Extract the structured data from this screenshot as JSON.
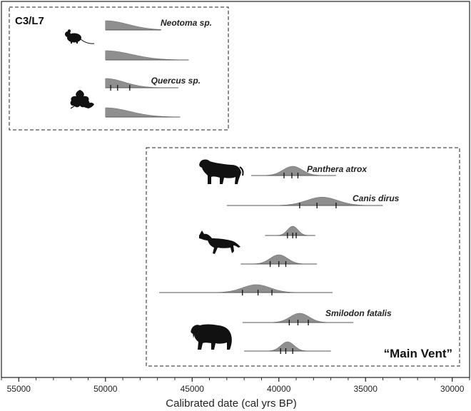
{
  "chart_data": {
    "type": "area",
    "xlabel": "Calibrated date (cal yrs BP)",
    "x_ticks": [
      55000,
      50000,
      45000,
      40000,
      35000,
      30000
    ],
    "xlim": [
      56000,
      29000
    ],
    "groups": [
      {
        "label": "C3/L7",
        "label_pos": "top-left"
      },
      {
        "label": "“Main Vent”",
        "label_pos": "bottom-right"
      }
    ],
    "distributions": [
      {
        "group": 0,
        "label": "Neotoma sp.",
        "shape": "truncated",
        "start": 50000,
        "end": 46800,
        "spread": 1300,
        "height": 1.0,
        "line_end": 46800,
        "ticks": []
      },
      {
        "group": 0,
        "label": "",
        "shape": "truncated",
        "start": 50000,
        "end": 45200,
        "spread": 1500,
        "height": 1.0,
        "line_end": 45200,
        "ticks": []
      },
      {
        "group": 0,
        "label": "Quercus sp.",
        "shape": "truncated",
        "start": 50000,
        "end": 45800,
        "spread": 1100,
        "height": 1.0,
        "line_end": 45800,
        "ticks": [
          49700,
          49300,
          48600
        ]
      },
      {
        "group": 0,
        "label": "",
        "shape": "truncated",
        "start": 50000,
        "end": 45700,
        "spread": 1400,
        "height": 1.0,
        "line_end": 45700,
        "ticks": []
      },
      {
        "group": 1,
        "label": "Panthera atrox",
        "shape": "gaussian",
        "peak": 39200,
        "sd": 550,
        "height": 1.0,
        "line_start": 41600,
        "line_end": 36700,
        "ticks": [
          39700,
          39250,
          38900
        ]
      },
      {
        "group": 1,
        "label": "Canis dirus",
        "shape": "gaussian",
        "peak": 37500,
        "sd": 900,
        "height": 0.9,
        "line_start": 43000,
        "line_end": 34000,
        "ticks": [
          38800,
          37800,
          36700
        ]
      },
      {
        "group": 1,
        "label": "",
        "shape": "gaussian",
        "peak": 39200,
        "sd": 300,
        "height": 1.0,
        "line_start": 40800,
        "line_end": 37900,
        "ticks": [
          39500,
          39200,
          39000
        ]
      },
      {
        "group": 1,
        "label": "",
        "shape": "gaussian",
        "peak": 40000,
        "sd": 500,
        "height": 1.0,
        "line_start": 42200,
        "line_end": 37800,
        "ticks": [
          40500,
          40000,
          39600
        ]
      },
      {
        "group": 1,
        "label": "",
        "shape": "gaussian",
        "peak": 41300,
        "sd": 800,
        "height": 0.85,
        "line_start": 46900,
        "line_end": 36900,
        "ticks": [
          42100,
          41200,
          40400
        ]
      },
      {
        "group": 1,
        "label": "Smilodon fatalis",
        "shape": "gaussian",
        "peak": 38800,
        "sd": 550,
        "height": 1.0,
        "line_start": 42100,
        "line_end": 35700,
        "ticks": [
          39400,
          38900,
          38300
        ]
      },
      {
        "group": 1,
        "label": "",
        "shape": "gaussian",
        "peak": 39500,
        "sd": 380,
        "height": 1.0,
        "line_start": 42000,
        "line_end": 37000,
        "ticks": [
          39900,
          39600,
          39200
        ]
      }
    ],
    "icons": [
      {
        "group": 0,
        "name": "woodrat-icon"
      },
      {
        "group": 0,
        "name": "oak-leaf-icon"
      },
      {
        "group": 1,
        "name": "panthera-icon"
      },
      {
        "group": 1,
        "name": "dire-wolf-icon"
      },
      {
        "group": 1,
        "name": "smilodon-icon"
      }
    ],
    "colors": {
      "fill": "#8f8f8f",
      "line": "#555555",
      "frame": "#222222"
    }
  }
}
